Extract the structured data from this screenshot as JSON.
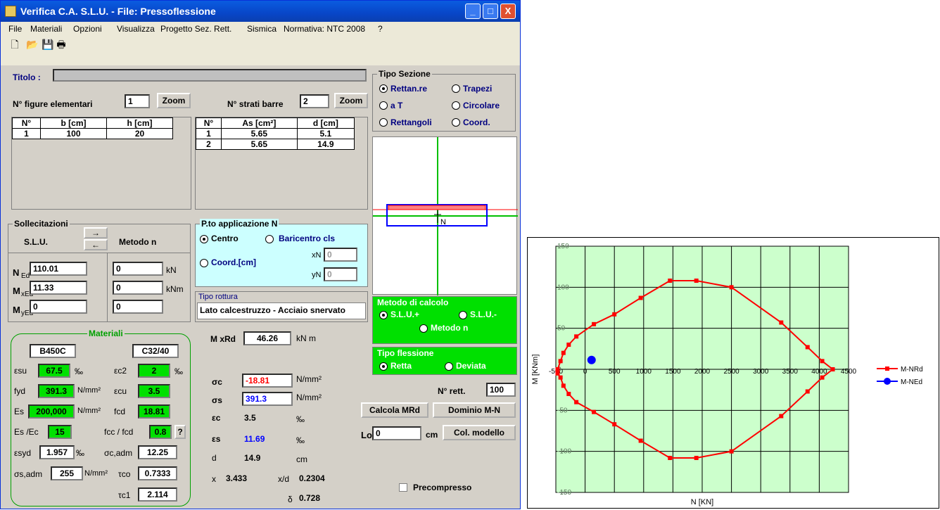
{
  "window": {
    "title": "Verifica C.A. S.L.U. - File: Pressoflessione",
    "min": "_",
    "max": "□",
    "close": "X"
  },
  "menu": [
    "File",
    "Materiali",
    "Opzioni",
    "Visualizza",
    "Progetto Sez. Rett.",
    "Sismica",
    "Normativa: NTC 2008",
    "?"
  ],
  "toolbar_icons": [
    "new-file-icon",
    "open-folder-icon",
    "save-icon",
    "print-icon"
  ],
  "titolo": {
    "label": "Titolo :",
    "value": ""
  },
  "figure": {
    "label": "N° figure elementari",
    "value": "1",
    "zoom": "Zoom",
    "headers": [
      "N°",
      "b [cm]",
      "h [cm]"
    ],
    "rows": [
      [
        "1",
        "100",
        "20"
      ]
    ]
  },
  "strati": {
    "label": "N° strati barre",
    "value": "2",
    "zoom": "Zoom",
    "headers": [
      "N°",
      "As [cm²]",
      "d [cm]"
    ],
    "rows": [
      [
        "1",
        "5.65",
        "5.1"
      ],
      [
        "2",
        "5.65",
        "14.9"
      ]
    ]
  },
  "tipo_sezione": {
    "title": "Tipo Sezione",
    "options": [
      {
        "label": "Rettan.re",
        "on": true
      },
      {
        "label": "Trapezi",
        "on": false
      },
      {
        "label": "a T",
        "on": false
      },
      {
        "label": "Circolare",
        "on": false
      },
      {
        "label": "Rettangoli",
        "on": false
      },
      {
        "label": "Coord.",
        "on": false
      }
    ]
  },
  "sollecitazioni": {
    "title": "Sollecitazioni",
    "slu": "S.L.U.",
    "metodo": "Metodo n",
    "arrow_right": "→",
    "arrow_left": "←",
    "rows": [
      {
        "label": "N",
        "sub": "Ed",
        "slu": "110.01",
        "n": "0",
        "unit": "kN"
      },
      {
        "label": "M",
        "sub": "xEd",
        "slu": "11.33",
        "n": "0",
        "unit": "kNm"
      },
      {
        "label": "M",
        "sub": "yEd",
        "slu": "0",
        "n": "0",
        "unit": ""
      }
    ]
  },
  "pto": {
    "title": "P.to applicazione N",
    "centro": "Centro",
    "baricentro": "Baricentro cls",
    "coord": "Coord.[cm]",
    "xN_label": "xN",
    "xN": "0",
    "yN_label": "yN",
    "yN": "0"
  },
  "rottura": {
    "title": "Tipo rottura",
    "value": "Lato calcestruzzo - Acciaio snervato"
  },
  "metodo_calcolo": {
    "title": "Metodo di calcolo",
    "opt1": "S.L.U.+",
    "opt2": "S.L.U.-",
    "opt3": "Metodo n"
  },
  "tipo_flessione": {
    "title": "Tipo flessione",
    "opt1": "Retta",
    "opt2": "Deviata"
  },
  "materiali": {
    "title": "Materiali",
    "steel": "B450C",
    "concrete": "C32/40",
    "esu_label": "εsu",
    "esu": "67.5",
    "esu_unit": "‰",
    "ec2_label": "εc2",
    "ec2": "2",
    "ec2_unit": "‰",
    "fyd_label": "fyd",
    "fyd": "391.3",
    "fyd_unit": "N/mm²",
    "ecu_label": "εcu",
    "ecu": "3.5",
    "Es_label": "Es",
    "Es": "200,000",
    "Es_unit": "N/mm²",
    "fcd_label": "fcd",
    "fcd": "18.81",
    "EsEc_label": "Es /Ec",
    "EsEc": "15",
    "fccfcd_label": "fcc / fcd",
    "fccfcd": "0.8",
    "help": "?",
    "esyd_label": "εsyd",
    "esyd": "1.957",
    "esyd_unit": "‰",
    "sca_label": "σc,adm",
    "sca": "12.25",
    "ssa_label": "σs,adm",
    "ssa": "255",
    "ssa_unit": "N/mm²",
    "tco_label": "τco",
    "tco": "0.7333",
    "tc1_label": "τc1",
    "tc1": "2.114"
  },
  "results": {
    "mxrd_label": "M xRd",
    "mxrd": "46.26",
    "mxrd_unit": "kN m",
    "sc_label": "σc",
    "sc": "-18.81",
    "sc_unit": "N/mm²",
    "ss_label": "σs",
    "ss": "391.3",
    "ss_unit": "N/mm²",
    "ec_label": "εc",
    "ec": "3.5",
    "ec_unit": "‰",
    "es_label": "εs",
    "es": "11.69",
    "es_unit": "‰",
    "d_label": "d",
    "d": "14.9",
    "d_unit": "cm",
    "x_label": "x",
    "x": "3.433",
    "xd_label": "x/d",
    "xd": "0.2304",
    "delta_label": "δ",
    "delta": "0.728"
  },
  "nrett": {
    "label": "N° rett.",
    "value": "100"
  },
  "buttons": {
    "calcola": "Calcola MRd",
    "dominio": "Dominio M-N",
    "col": "Col. modello"
  },
  "lo": {
    "label": "Lo",
    "value": "0",
    "unit": "cm"
  },
  "precompresso": "Precompresso",
  "section_label": "N",
  "chart_data": {
    "type": "line",
    "xlabel": "N [KN]",
    "ylabel": "M [KNm]",
    "xlim": [
      -500,
      4500
    ],
    "ylim": [
      -150,
      150
    ],
    "xticks": [
      "-500",
      "0",
      "500",
      "1000",
      "1500",
      "2000",
      "2500",
      "3000",
      "3500",
      "4000",
      "4500"
    ],
    "yticks": [
      "150",
      "100",
      "50",
      "0",
      "-50",
      "-100",
      "-150"
    ],
    "grid": true,
    "legend": "right",
    "background": "#ccffcc",
    "series": [
      {
        "name": "M-NRd",
        "color": "#ff0000",
        "marker": "square",
        "x": [
          -470,
          -420,
          -370,
          -280,
          -150,
          150,
          500,
          950,
          1450,
          1900,
          2500,
          3350,
          3800,
          4050,
          4230,
          4050,
          3800,
          3350,
          2500,
          1900,
          1450,
          950,
          500,
          150,
          -150,
          -280,
          -370,
          -420,
          -470,
          -470
        ],
        "y": [
          0,
          10,
          20,
          30,
          40,
          55,
          67,
          87,
          108,
          108,
          100,
          57,
          27,
          10,
          0,
          -10,
          -27,
          -57,
          -100,
          -108,
          -108,
          -87,
          -67,
          -52,
          -40,
          -30,
          -20,
          -10,
          -5,
          0
        ]
      },
      {
        "name": "M-NEd",
        "color": "#0000ff",
        "marker": "circle",
        "x": [
          110
        ],
        "y": [
          11.33
        ]
      }
    ]
  }
}
